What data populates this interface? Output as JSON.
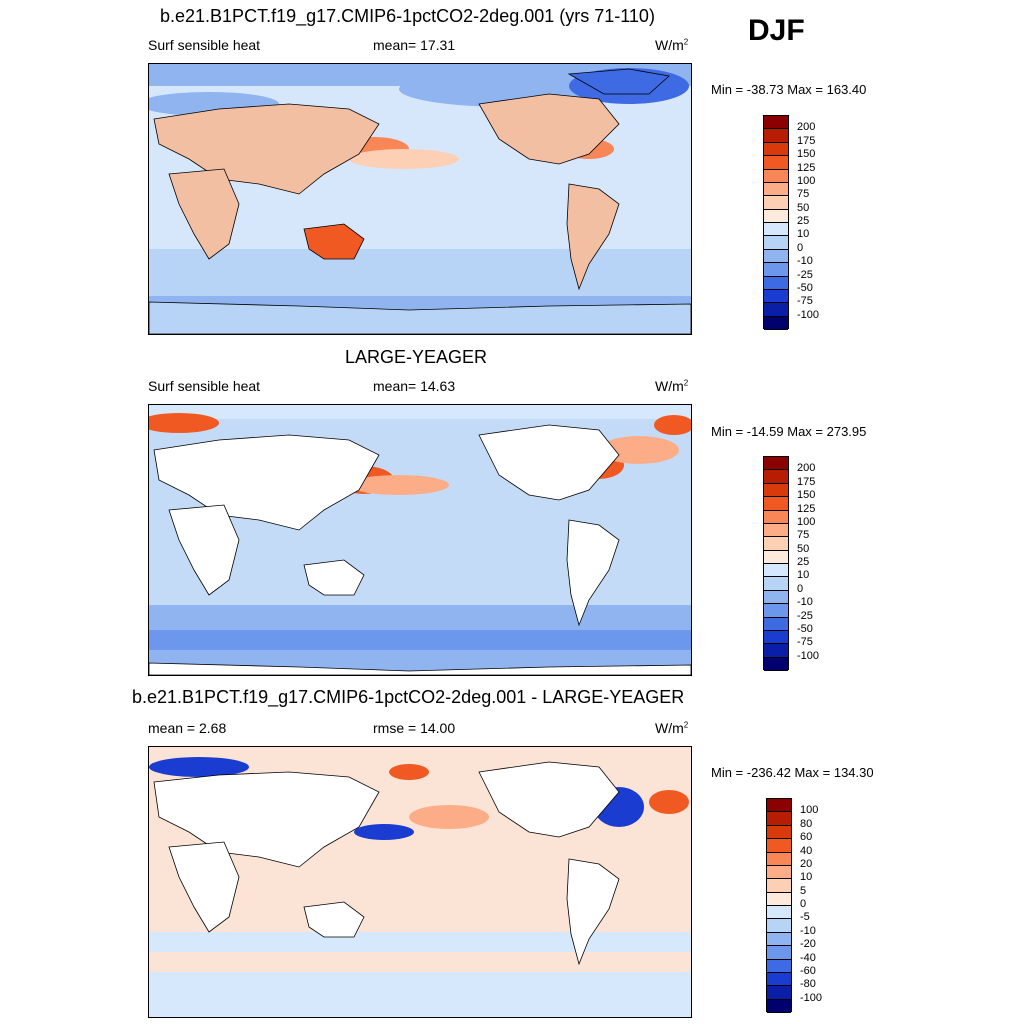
{
  "season": "DJF",
  "panels": [
    {
      "title": "b.e21.B1PCT.f19_g17.CMIP6-1pctCO2-2deg.001 (yrs 71-110)",
      "left_label": "Surf sensible heat",
      "mid_label": "mean=  17.31",
      "units": "W/m",
      "units_sup": "2",
      "minmax": "Min = -38.73 Max = 163.40",
      "colorbar": {
        "labels": [
          "200",
          "175",
          "150",
          "125",
          "100",
          "75",
          "50",
          "25",
          "10",
          "0",
          "-10",
          "-25",
          "-50",
          "-75",
          "-100"
        ],
        "colors": [
          "#8b0000",
          "#b81d04",
          "#d93a0c",
          "#f05a22",
          "#f98656",
          "#fcad88",
          "#fdd0b6",
          "#fdeadc",
          "#d6e8fb",
          "#b7d3f5",
          "#8fb4f0",
          "#6c97ec",
          "#3e6ae4",
          "#1a3cd0",
          "#0a1ea8",
          "#00006e"
        ]
      },
      "ocean_color": "#d7e7fb",
      "land_color": "#f3bfa3"
    },
    {
      "title": "LARGE-YEAGER",
      "left_label": "Surf sensible heat",
      "mid_label": "mean=  14.63",
      "units": "W/m",
      "units_sup": "2",
      "minmax": "Min = -14.59 Max = 273.95",
      "colorbar": {
        "labels": [
          "200",
          "175",
          "150",
          "125",
          "100",
          "75",
          "50",
          "25",
          "10",
          "0",
          "-10",
          "-25",
          "-50",
          "-75",
          "-100"
        ],
        "colors": [
          "#8b0000",
          "#b81d04",
          "#d93a0c",
          "#f05a22",
          "#f98656",
          "#fcad88",
          "#fdd0b6",
          "#fdeadc",
          "#d6e8fb",
          "#b7d3f5",
          "#8fb4f0",
          "#6c97ec",
          "#3e6ae4",
          "#1a3cd0",
          "#0a1ea8",
          "#00006e"
        ]
      },
      "ocean_color": "#c4dbf7",
      "land_color": "#ffffff"
    },
    {
      "title": "b.e21.B1PCT.f19_g17.CMIP6-1pctCO2-2deg.001 - LARGE-YEAGER",
      "left_label": "mean =   2.68",
      "mid_label": "rmse =  14.00",
      "units": "W/m",
      "units_sup": "2",
      "minmax": "Min = -236.42 Max = 134.30",
      "colorbar": {
        "labels": [
          "100",
          "80",
          "60",
          "40",
          "20",
          "10",
          "5",
          "0",
          "-5",
          "-10",
          "-20",
          "-40",
          "-60",
          "-80",
          "-100"
        ],
        "colors": [
          "#8b0000",
          "#b81d04",
          "#d93a0c",
          "#f05a22",
          "#f98656",
          "#fcad88",
          "#fdd0b6",
          "#fdeadc",
          "#d6e8fb",
          "#b7d3f5",
          "#8fb4f0",
          "#6c97ec",
          "#3e6ae4",
          "#1a3cd0",
          "#0a1ea8",
          "#00006e"
        ]
      },
      "ocean_color": "#fbe3d6",
      "land_color": "#ffffff"
    }
  ]
}
